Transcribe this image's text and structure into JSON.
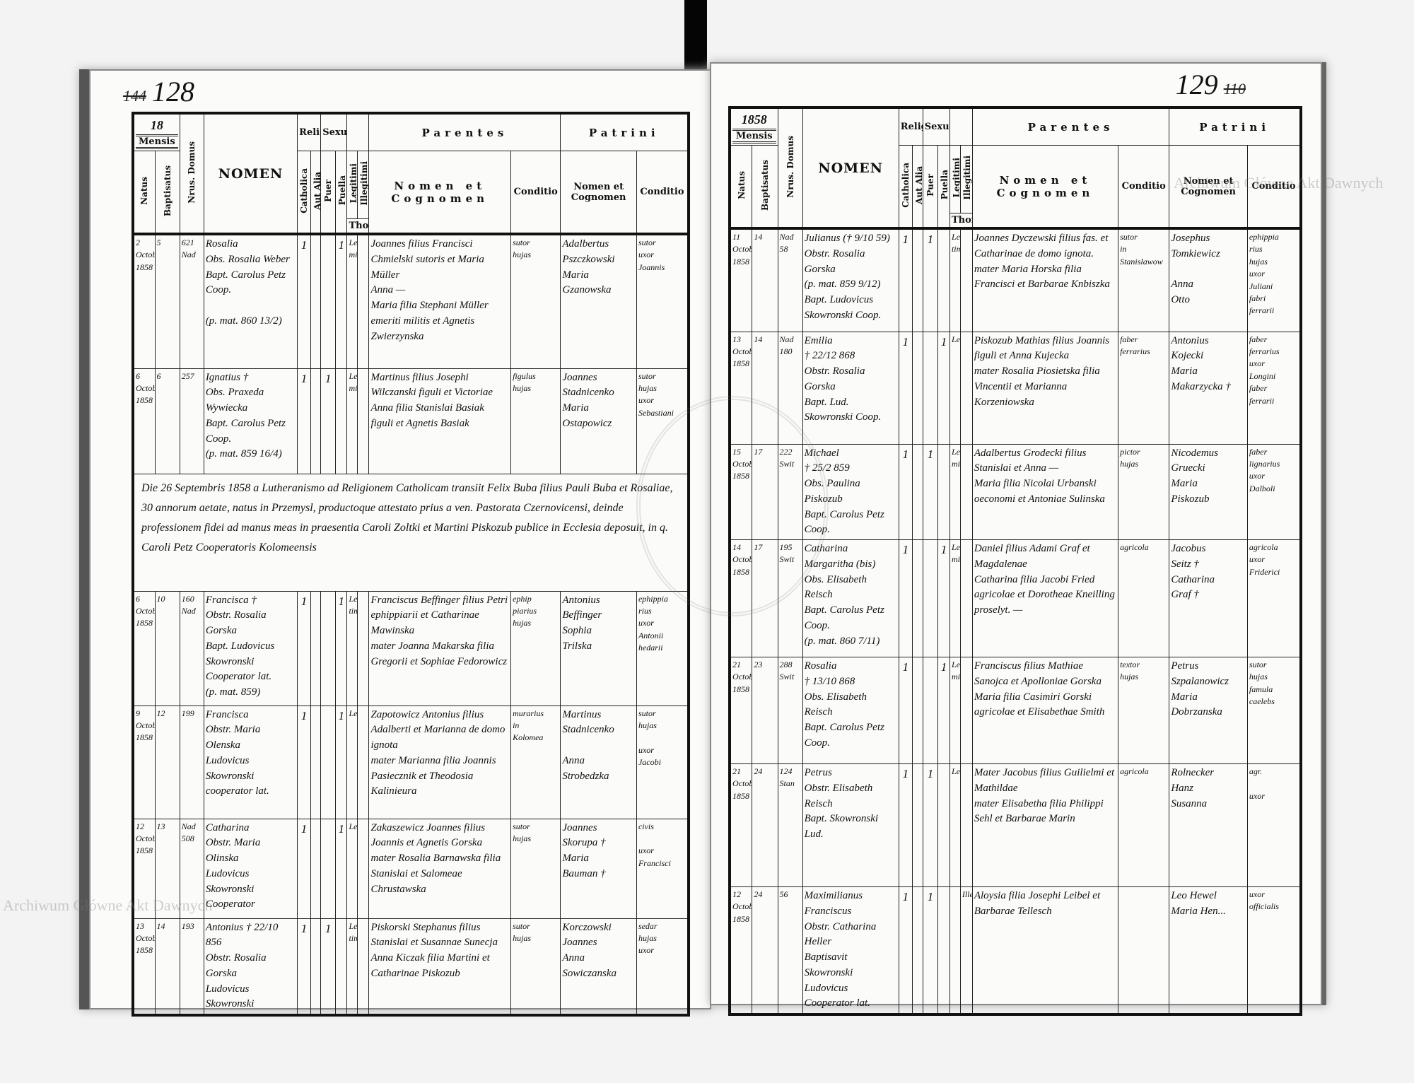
{
  "watermark": "Archiwum Główne Akt Dawnych",
  "headers": {
    "mensis": "Mensis",
    "natus": "Natus",
    "baptisatus": "Baptisatus",
    "domus": "Nrus. Domus",
    "nomen": "NOMEN",
    "religio": "Religio",
    "catholica": "Catholica",
    "aut_alia": "Aut Alia",
    "sexus": "Sexus",
    "puer": "Puer",
    "puella": "Puella",
    "legitimi": "Legitimi",
    "illegitimi": "Illegitimi",
    "thori": "Thori",
    "parentes": "Parentes",
    "patrini": "Patrini",
    "nomen_et_cognomen": "Nomen et Cognomen",
    "conditio": "Conditio"
  },
  "pages": [
    {
      "folio": "128",
      "folio_struck": "144",
      "year": "18",
      "entries": [
        {
          "natus": "2\nOctobris\n1858",
          "bapt": "5",
          "domus": "621\nNad",
          "nomen": "Rosalia\nObs. Rosalia Weber\nBapt. Carolus Petz Coop.\n\n(p. mat. 860 13/2)",
          "cath": "1",
          "alia": "",
          "puer": "",
          "puella": "1",
          "legit": "Legiti\nmi",
          "illegit": "",
          "par": "Joannes filius Francisci Chmielski sutoris et Maria Müller\nAnna —\nMaria filia Stephani Müller emeriti militis et Agnetis Zwierzynska",
          "par_cond": "sutor\nhujas",
          "pat": "Adalbertus\nPszczkowski\nMaria\nGzanowska",
          "pat_cond": "sutor\nuxor\nJoannis"
        },
        {
          "natus": "6\nOctobris\n1858",
          "bapt": "6",
          "domus": "257",
          "nomen": "Ignatius †\nObs. Praxeda Wywiecka\nBapt. Carolus Petz Coop.\n(p. mat. 859 16/4)",
          "cath": "1",
          "alia": "",
          "puer": "1",
          "puella": "",
          "legit": "Legiti\nmi",
          "illegit": "",
          "par": "Martinus filius Josephi Wilczanski figuli et Victoriae\nAnna filia Stanislai Basiak figuli et Agnetis Basiak",
          "par_cond": "figulus\nhujas",
          "pat": "Joannes\nStadnicenko\nMaria\nOstapowicz",
          "pat_cond": "sutor\nhujas\nuxor\nSebastiani"
        },
        {
          "note": "Die 26 Septembris 1858 a Lutheranismo ad Religionem Catholicam transiit Felix Buba filius Pauli Buba et Rosaliae, 30 annorum aetate, natus in Przemysl, productoque attestato prius a ven. Pastorata Czernovicensi, deinde professionem fidei ad manus meas in praesentia Caroli Zoltki et Martini Piskozub publice in Ecclesia deposuit, in q. Caroli Petz Cooperatoris Kolomeensis"
        },
        {
          "natus": "6\nOctobris\n1858",
          "bapt": "10",
          "domus": "160\nNad",
          "nomen": "Francisca †\nObstr. Rosalia Gorska\nBapt. Ludovicus Skowronski Cooperator lat.\n(p. mat. 859)",
          "cath": "1",
          "alia": "",
          "puer": "",
          "puella": "1",
          "legit": "Legi\ntimi",
          "illegit": "",
          "par": "Franciscus Beffinger filius Petri ephippiarii et Catharinae Mawinska\nmater Joanna Makarska filia Gregorii et Sophiae Fedorowicz",
          "par_cond": "ephip\npiarius\nhujas",
          "pat": "Antonius\nBeffinger\nSophia\nTrilska",
          "pat_cond": "ephippia\nrius\nuxor\nAntonii\nhedarii"
        },
        {
          "natus": "9\nOctobris\n1858",
          "bapt": "12",
          "domus": "199",
          "nomen": "Francisca\nObstr. Maria Olenska\nLudovicus Skowronski\ncooperator lat.",
          "cath": "1",
          "alia": "",
          "puer": "",
          "puella": "1",
          "legit": "Leg.",
          "illegit": "",
          "par": "Zapotowicz Antonius filius Adalberti et Marianna de domo ignota\nmater Marianna filia Joannis Pasiecznik et Theodosia Kalinieura",
          "par_cond": "murarius\nin\nKolomea",
          "pat": "Martinus\nStadnicenko\n\nAnna\nStrobedzka",
          "pat_cond": "sutor\nhujas\n\nuxor\nJacobi"
        },
        {
          "natus": "12\nOctobris\n1858",
          "bapt": "13",
          "domus": "Nad\n508",
          "nomen": "Catharina\nObstr. Maria Olinska\nLudovicus Skowronski\nCooperator",
          "cath": "1",
          "alia": "",
          "puer": "",
          "puella": "1",
          "legit": "Leg.",
          "illegit": "",
          "par": "Zakaszewicz Joannes filius Joannis et Agnetis Gorska\nmater Rosalia Barnawska filia Stanislai et Salomeae Chrustawska",
          "par_cond": "sutor\nhujas",
          "pat": "Joannes\nSkorupa †\nMaria\nBauman †",
          "pat_cond": "civis\n\nuxor\nFrancisci"
        },
        {
          "natus": "13\nOctobris\n1858",
          "bapt": "14",
          "domus": "193",
          "nomen": "Antonius † 22/10 856\nObstr. Rosalia Gorska\nLudovicus Skowronski",
          "cath": "1",
          "alia": "",
          "puer": "1",
          "puella": "",
          "legit": "Legi\ntimi",
          "illegit": "",
          "par": "Piskorski Stephanus filius Stanislai et Susannae Sunecja\nAnna Kiczak filia Martini et Catharinae Piskozub",
          "par_cond": "sutor\nhujas",
          "pat": "Korczowski\nJoannes\nAnna\nSowiczanska",
          "pat_cond": "sedar\nhujas\nuxor"
        }
      ]
    },
    {
      "folio": "129",
      "folio_struck": "110",
      "year": "1858",
      "entries": [
        {
          "natus": "11\nOctobris\n1858",
          "bapt": "14",
          "domus": "Nad\n58",
          "nomen": "Julianus († 9/10 59)\nObstr. Rosalia Gorska\n(p. mat. 859 9/12)\nBapt. Ludovicus Skowronski Coop.",
          "cath": "1",
          "alia": "",
          "puer": "1",
          "puella": "",
          "legit": "Legi\ntimi",
          "illegit": "",
          "par": "Joannes Dyczewski filius fas. et Catharinae de domo ignota.\nmater Maria Horska filia Francisci et Barbarae Knbiszka",
          "par_cond": "sutor\nin\nStanislawow",
          "pat": "Josephus\nTomkiewicz\n\nAnna\nOtto",
          "pat_cond": "ephippia\nrius\nhujas\nuxor\nJuliani\nfabri\nferrarii"
        },
        {
          "natus": "13\nOctobris\n1858",
          "bapt": "14",
          "domus": "Nad\n180",
          "nomen": "Emilia\n† 22/12 868\nObstr. Rosalia Gorska\nBapt. Lud. Skowronski Coop.",
          "cath": "1",
          "alia": "",
          "puer": "",
          "puella": "1",
          "legit": "Leg.",
          "illegit": "",
          "par": "Piskozub Mathias filius Joannis figuli et Anna Kujecka\nmater Rosalia Piosietska filia Vincentii et Marianna Korzeniowska",
          "par_cond": "faber\nferrarius",
          "pat": "Antonius\nKojecki\nMaria\nMakarzycka †",
          "pat_cond": "faber\nferrarius\nuxor\nLongini\nfaber\nferrarii"
        },
        {
          "natus": "15\nOctobris\n1858",
          "bapt": "17",
          "domus": "222\nSwit",
          "nomen": "Michael\n† 25/2 859\nObs. Paulina Piskozub\nBapt. Carolus Petz Coop.",
          "cath": "1",
          "alia": "",
          "puer": "1",
          "puella": "",
          "legit": "Legiti\nmi",
          "illegit": "",
          "par": "Adalbertus Grodecki filius Stanislai et Anna —\nMaria filia Nicolai Urbanski oeconomi et Antoniae Sulinska",
          "par_cond": "pictor\nhujas",
          "pat": "Nicodemus\nGruecki\nMaria\nPiskozub",
          "pat_cond": "faber\nlignarius\nuxor\nDalboli"
        },
        {
          "natus": "14\nOctobris\n1858",
          "bapt": "17",
          "domus": "195\nSwit",
          "nomen": "Catharina\nMargaritha (bis)\nObs. Elisabeth Reisch\nBapt. Carolus Petz Coop.\n(p. mat. 860 7/11)",
          "cath": "1",
          "alia": "",
          "puer": "",
          "puella": "1",
          "legit": "Legiti\nmi",
          "illegit": "",
          "par": "Daniel filius Adami Graf et Magdalenae\nCatharina filia Jacobi Fried agricolae et Dorotheae Kneilling\nproselyt. —",
          "par_cond": "agricola",
          "pat": "Jacobus\nSeitz †\nCatharina\nGraf †",
          "pat_cond": "agricola\nuxor\nFriderici"
        },
        {
          "natus": "21\nOctobris\n1858",
          "bapt": "23",
          "domus": "288\nSwit",
          "nomen": "Rosalia\n† 13/10 868\nObs. Elisabeth Reisch\nBapt. Carolus Petz Coop.",
          "cath": "1",
          "alia": "",
          "puer": "",
          "puella": "1",
          "legit": "Legiti\nmi",
          "illegit": "",
          "par": "Franciscus filius Mathiae Sanojca et Apolloniae Gorska\nMaria filia Casimiri Gorski agricolae et Elisabethae Smith",
          "par_cond": "textor\nhujas",
          "pat": "Petrus\nSzpalanowicz\nMaria\nDobrzanska",
          "pat_cond": "sutor\nhujas\nfamula\ncaelebs"
        },
        {
          "natus": "21\nOctobris\n1858",
          "bapt": "24",
          "domus": "124\nStan",
          "nomen": "Petrus\nObstr. Elisabeth Reisch\nBapt. Skowronski Lud.",
          "cath": "1",
          "alia": "",
          "puer": "1",
          "puella": "",
          "legit": "Leg.",
          "illegit": "",
          "par": "Mater Jacobus filius Guilielmi et Mathildae\nmater Elisabetha filia Philippi Sehl et Barbarae Marin",
          "par_cond": "agricola",
          "pat": "Rolnecker\nHanz\nSusanna",
          "pat_cond": "agr.\n\nuxor"
        },
        {
          "natus": "12\nOctobris\n1858",
          "bapt": "24",
          "domus": "56",
          "nomen": "Maximilianus\nFranciscus\nObstr. Catharina Heller\nBaptisavit Skowronski Ludovicus Cooperator lat.",
          "cath": "1",
          "alia": "",
          "puer": "1",
          "puella": "",
          "legit": "",
          "illegit": "Illeg.",
          "par": "Aloysia filia Josephi Leibel et Barbarae Tellesch",
          "par_cond": "",
          "pat": "Leo Hewel\nMaria Hen...",
          "pat_cond": "uxor\nofficialis"
        }
      ]
    }
  ]
}
